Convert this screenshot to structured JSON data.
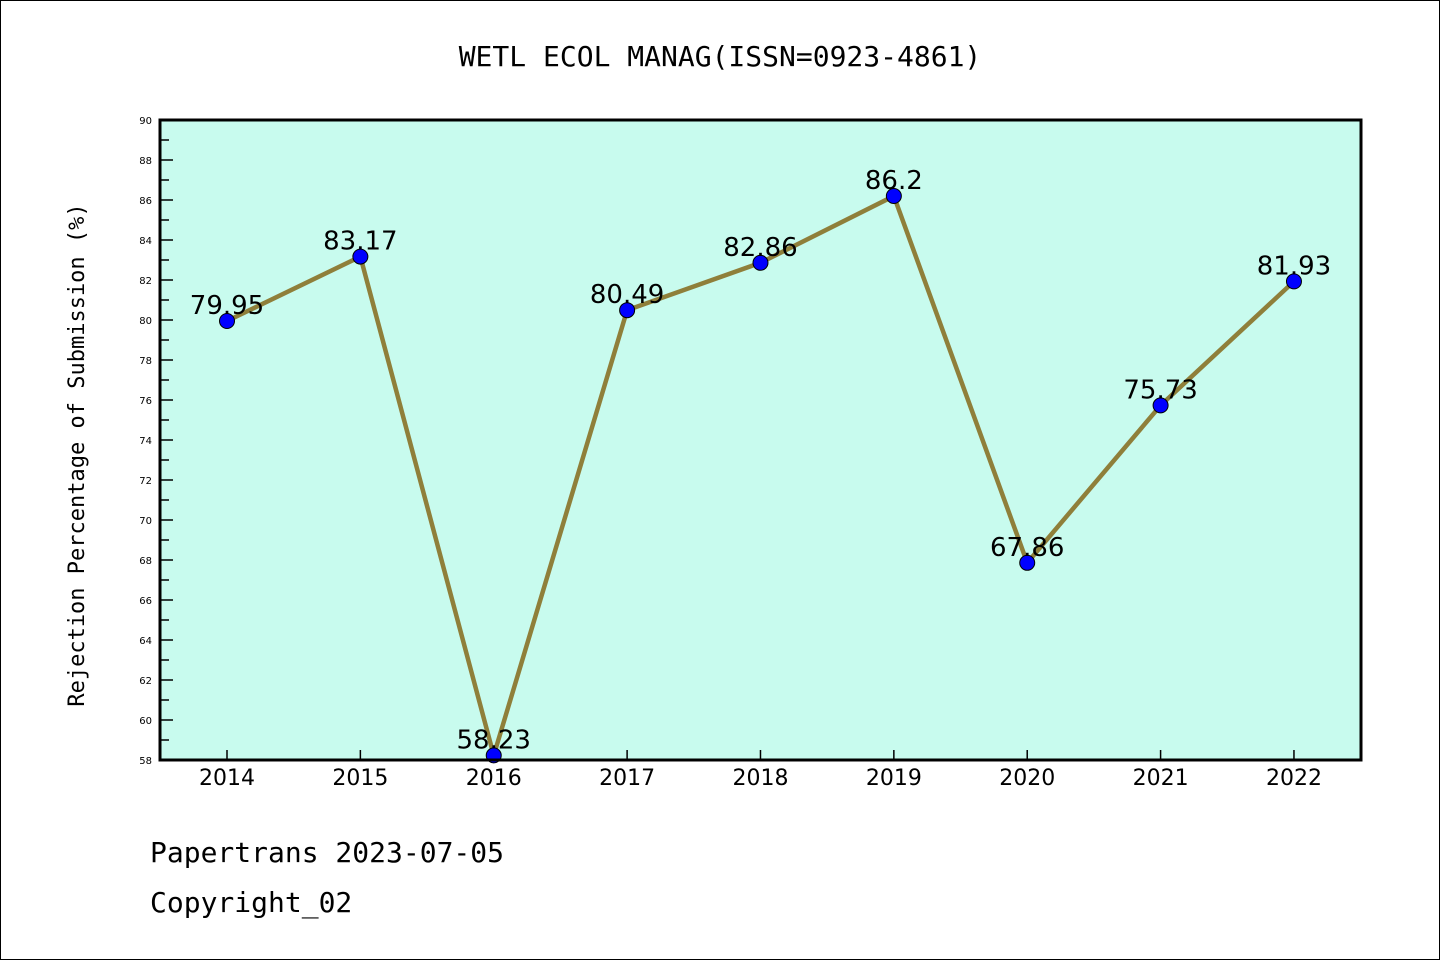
{
  "chart_data": {
    "type": "line",
    "title": "WETL ECOL MANAG(ISSN=0923-4861)",
    "xlabel": "",
    "ylabel": "Rejection Percentage of Submission (%)",
    "categories": [
      "2014",
      "2015",
      "2016",
      "2017",
      "2018",
      "2019",
      "2020",
      "2021",
      "2022"
    ],
    "series": [
      {
        "name": "Rejection Percentage",
        "values": [
          79.95,
          83.17,
          58.23,
          80.49,
          82.86,
          86.2,
          67.86,
          75.73,
          81.93
        ]
      }
    ],
    "data_labels": [
      "79.95",
      "83.17",
      "58.23",
      "80.49",
      "82.86",
      "86.2",
      "67.86",
      "75.73",
      "81.93"
    ],
    "ylim": [
      58,
      90
    ],
    "yticks": [
      58,
      60,
      62,
      64,
      66,
      68,
      70,
      72,
      74,
      76,
      78,
      80,
      82,
      84,
      86,
      88,
      90
    ],
    "grid": false,
    "colors": {
      "background": "#c8fbee",
      "line": "#8f7f3a",
      "marker": "#0000ff"
    }
  },
  "footer": {
    "line1": "Papertrans 2023-07-05",
    "line2": "Copyright_02"
  }
}
